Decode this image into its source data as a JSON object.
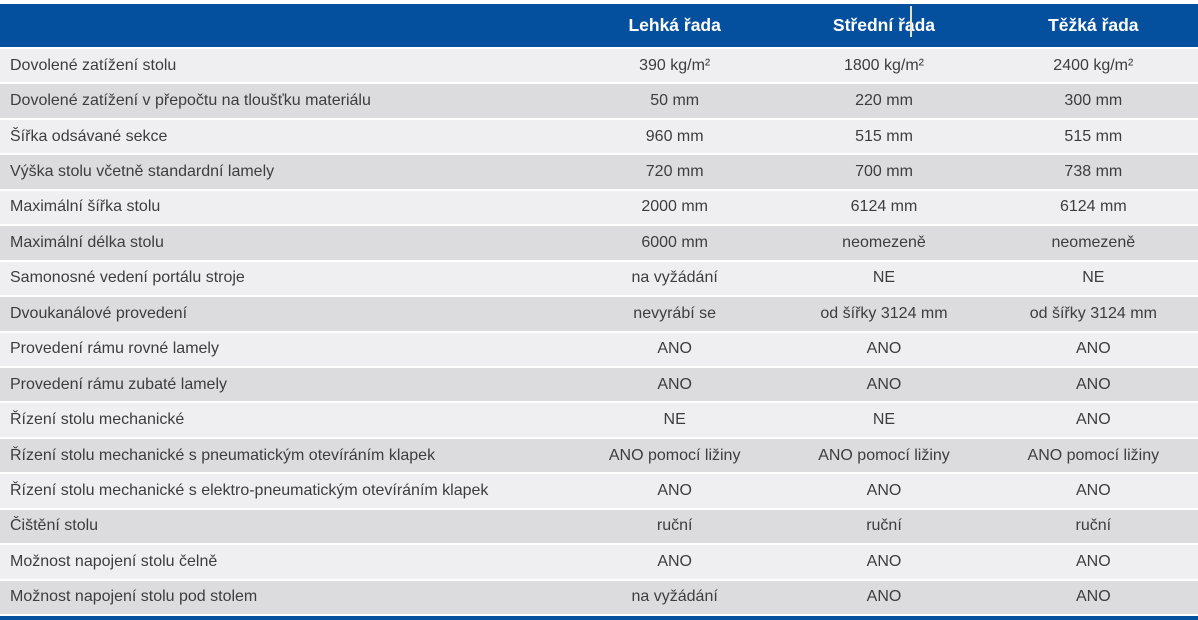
{
  "chart_data": {
    "type": "table",
    "columns": [
      "",
      "Lehká řada",
      "Střední řada",
      "Těžká řada"
    ],
    "rows": [
      {
        "label": "Dovolené zatížení stolu",
        "values": [
          "390 kg/m²",
          "1800 kg/m²",
          "2400 kg/m²"
        ]
      },
      {
        "label": "Dovolené zatížení v přepočtu na tloušťku materiálu",
        "values": [
          "50 mm",
          "220 mm",
          "300 mm"
        ]
      },
      {
        "label": "Šířka odsávané sekce",
        "values": [
          "960 mm",
          "515 mm",
          "515 mm"
        ]
      },
      {
        "label": "Výška stolu včetně standardní lamely",
        "values": [
          "720 mm",
          "700 mm",
          "738 mm"
        ]
      },
      {
        "label": "Maximální šířka stolu",
        "values": [
          "2000 mm",
          "6124 mm",
          "6124 mm"
        ]
      },
      {
        "label": "Maximální délka stolu",
        "values": [
          "6000 mm",
          "neomezeně",
          "neomezeně"
        ]
      },
      {
        "label": "Samonosné vedení portálu stroje",
        "values": [
          "na vyžádání",
          "NE",
          "NE"
        ]
      },
      {
        "label": "Dvoukanálové provedení",
        "values": [
          "nevyrábí se",
          "od šířky 3124 mm",
          "od šířky 3124 mm"
        ]
      },
      {
        "label": "Provedení rámu rovné lamely",
        "values": [
          "ANO",
          "ANO",
          "ANO"
        ]
      },
      {
        "label": "Provedení rámu zubaté lamely",
        "values": [
          "ANO",
          "ANO",
          "ANO"
        ]
      },
      {
        "label": "Řízení stolu mechanické",
        "values": [
          "NE",
          "NE",
          "ANO"
        ]
      },
      {
        "label": "Řízení stolu mechanické s pneumatickým otevíráním klapek",
        "values": [
          "ANO pomocí ližiny",
          "ANO pomocí ližiny",
          "ANO pomocí ližiny"
        ]
      },
      {
        "label": "Řízení stolu mechanické s elektro-pneumatickým otevíráním klapek",
        "values": [
          "ANO",
          "ANO",
          "ANO"
        ]
      },
      {
        "label": "Čištění stolu",
        "values": [
          "ruční",
          "ruční",
          "ruční"
        ]
      },
      {
        "label": "Možnost napojení stolu čelně",
        "values": [
          "ANO",
          "ANO",
          "ANO"
        ]
      },
      {
        "label": "Možnost napojení stolu pod stolem",
        "values": [
          "na vyžádání",
          "ANO",
          "ANO"
        ]
      }
    ],
    "legend_position": "none",
    "grid": "row-stripes"
  },
  "header": {
    "text_cursor_column_index": 2
  },
  "colors": {
    "header_bg": "#05509e",
    "header_text": "#ffffff",
    "row_light": "#efeff1",
    "row_dark": "#dcdcde",
    "body_text": "#3d3d3f",
    "bottom_bar": "#05509e"
  }
}
